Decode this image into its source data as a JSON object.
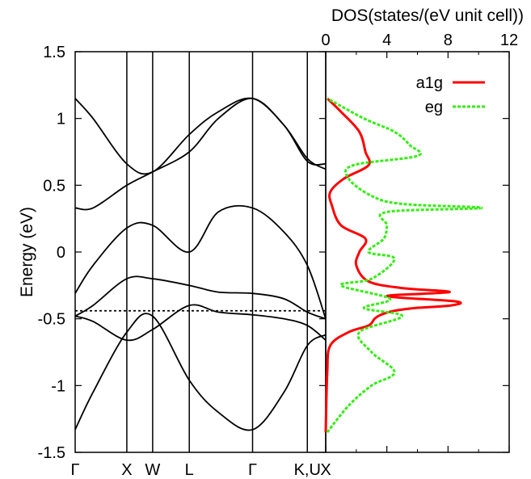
{
  "chart_data": [
    {
      "type": "line",
      "ylabel": "Energy (eV)",
      "ylim": [
        -1.5,
        1.5
      ],
      "yticks": [
        "1.5",
        "1",
        "0.5",
        "0",
        "-0.5",
        "-1",
        "-1.5"
      ],
      "kpoints": [
        "Γ",
        "X",
        "W",
        "L",
        "Γ",
        "K,U",
        "X"
      ],
      "kpoint_positions": [
        0.0,
        0.866,
        1.299,
        1.913,
        2.974,
        3.892,
        4.2
      ],
      "fermi_level": -0.44,
      "series": [
        {
          "k": [
            0.0,
            0.3,
            0.866,
            1.299,
            1.913,
            2.4,
            2.974,
            3.5,
            3.892,
            4.2
          ],
          "e": [
            -1.33,
            -1.05,
            -0.6,
            -0.48,
            -0.96,
            -1.2,
            -1.33,
            -1.05,
            -0.7,
            -0.62
          ]
        },
        {
          "k": [
            0.0,
            0.3,
            0.866,
            1.299,
            1.913,
            2.4,
            2.974,
            3.5,
            3.892,
            4.2
          ],
          "e": [
            -0.48,
            -0.52,
            -0.66,
            -0.58,
            -0.4,
            -0.45,
            -0.47,
            -0.5,
            -0.55,
            -0.66
          ]
        },
        {
          "k": [
            0.0,
            0.3,
            0.866,
            1.299,
            1.913,
            2.4,
            2.974,
            3.5,
            3.892,
            4.2
          ],
          "e": [
            -0.48,
            -0.4,
            -0.2,
            -0.2,
            -0.25,
            -0.3,
            -0.31,
            -0.35,
            -0.45,
            -0.5
          ]
        },
        {
          "k": [
            0.0,
            0.3,
            0.866,
            1.299,
            1.913,
            2.4,
            2.974,
            3.5,
            3.892,
            4.2
          ],
          "e": [
            -0.31,
            -0.1,
            0.18,
            0.2,
            0.0,
            0.3,
            0.33,
            0.15,
            -0.1,
            -0.5
          ]
        },
        {
          "k": [
            0.0,
            0.3,
            0.866,
            1.299,
            1.913,
            2.4,
            2.974,
            3.5,
            3.892,
            4.2
          ],
          "e": [
            0.33,
            0.33,
            0.5,
            0.6,
            0.75,
            1.0,
            1.15,
            0.95,
            0.7,
            0.62
          ]
        },
        {
          "k": [
            0.0,
            0.3,
            0.866,
            1.299,
            1.913,
            2.4,
            2.974,
            3.5,
            3.892,
            4.2
          ],
          "e": [
            1.15,
            1.0,
            0.66,
            0.6,
            0.88,
            1.05,
            1.15,
            0.95,
            0.68,
            0.66
          ]
        }
      ]
    },
    {
      "type": "line",
      "title": "DOS(states/(eV unit cell))",
      "xlim": [
        0,
        12
      ],
      "xticks": [
        "0",
        "4",
        "8",
        "12"
      ],
      "ylim": [
        -1.5,
        1.5
      ],
      "legend_position": "top-right",
      "series": [
        {
          "name": "a1g",
          "color": "#ff0000",
          "dash": "solid",
          "energy": [
            -1.35,
            -0.9,
            -0.7,
            -0.6,
            -0.55,
            -0.5,
            -0.47,
            -0.44,
            -0.42,
            -0.4,
            -0.37,
            -0.33,
            -0.3,
            -0.27,
            -0.22,
            -0.1,
            0.0,
            0.1,
            0.2,
            0.35,
            0.45,
            0.55,
            0.65,
            0.75,
            0.9,
            1.05,
            1.15
          ],
          "dos": [
            0.0,
            0.1,
            0.3,
            1.5,
            2.8,
            3.2,
            3.6,
            4.5,
            5.8,
            8.2,
            8.5,
            4.0,
            8.1,
            5.0,
            2.8,
            2.0,
            2.2,
            2.6,
            1.0,
            0.4,
            0.3,
            1.2,
            2.8,
            2.6,
            2.2,
            1.0,
            0.1
          ]
        },
        {
          "name": "eg",
          "color": "#33ee11",
          "dash": "dotted",
          "energy": [
            -1.35,
            -1.15,
            -1.0,
            -0.9,
            -0.75,
            -0.6,
            -0.48,
            -0.42,
            -0.35,
            -0.25,
            -0.2,
            -0.05,
            0.0,
            0.1,
            0.2,
            0.3,
            0.33,
            0.36,
            0.42,
            0.55,
            0.65,
            0.72,
            0.8,
            0.9,
            1.0,
            1.15
          ],
          "dos": [
            0.1,
            1.5,
            3.0,
            4.5,
            3.0,
            2.2,
            5.0,
            2.5,
            4.2,
            1.0,
            3.0,
            4.5,
            2.8,
            3.8,
            4.0,
            4.0,
            10.2,
            5.0,
            3.0,
            1.5,
            1.8,
            6.0,
            5.5,
            4.5,
            2.5,
            0.1
          ]
        }
      ]
    }
  ]
}
